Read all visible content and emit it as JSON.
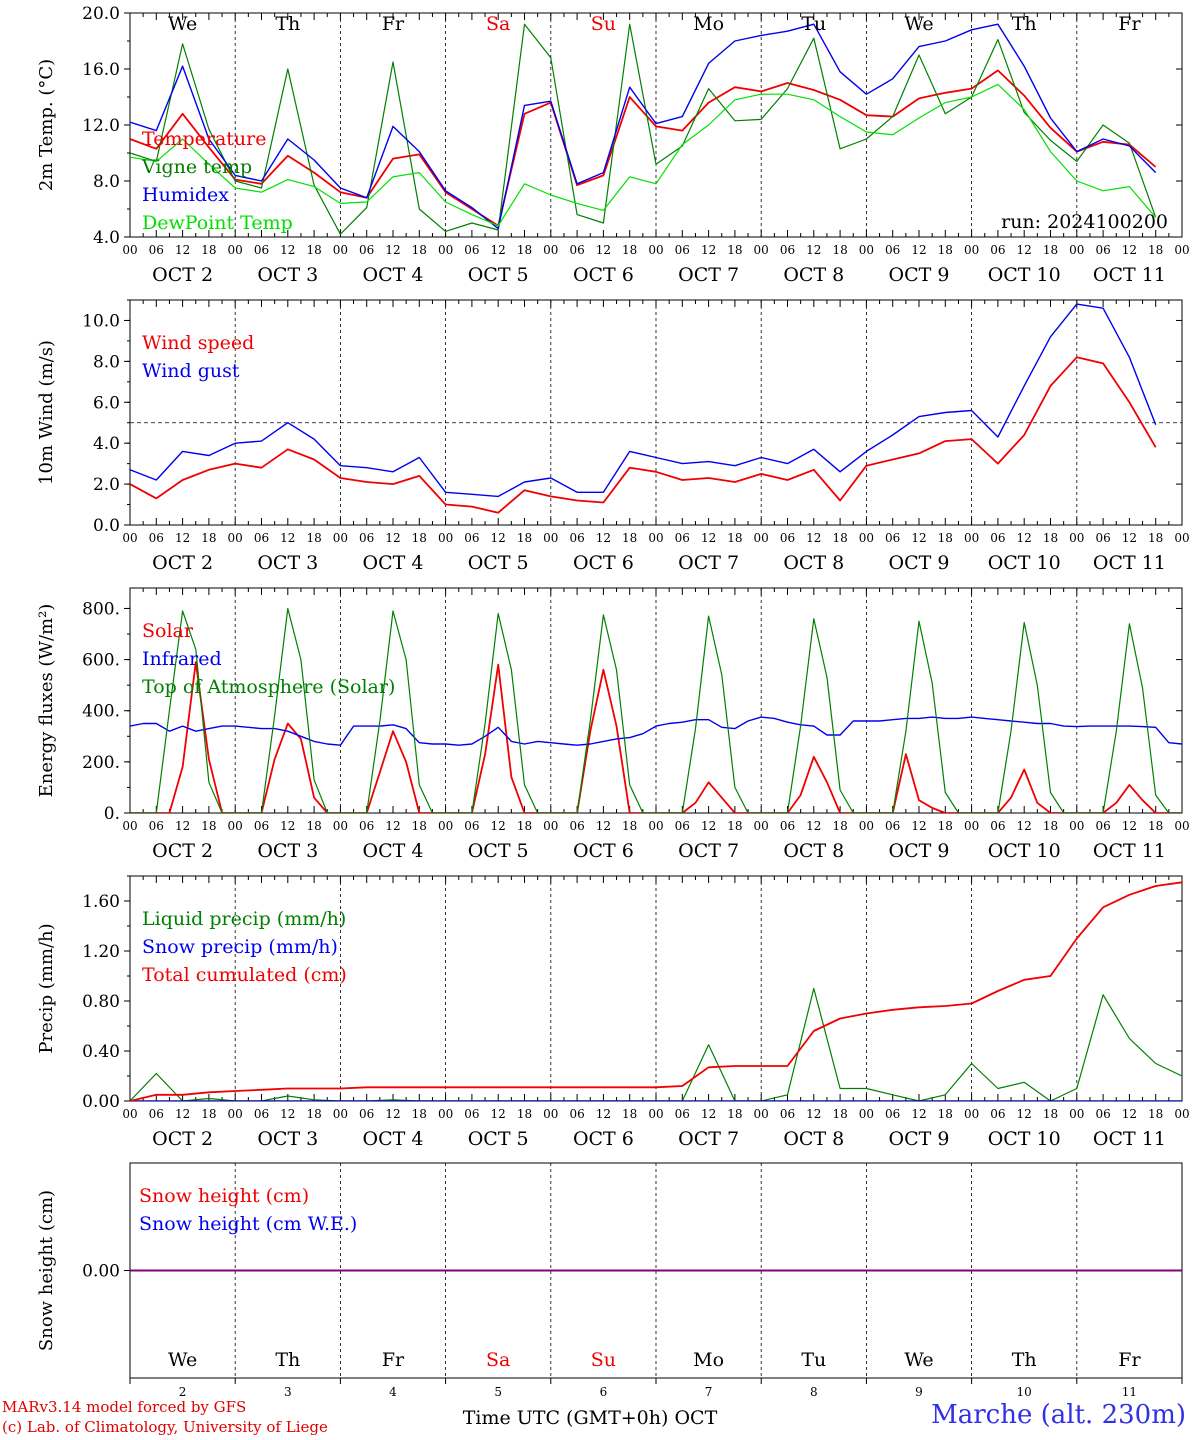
{
  "run_label": "run: 2024100200",
  "footer": {
    "credit_line1": "MARv3.14 model forced by GFS",
    "credit_line2": "(c) Lab. of Climatology, University of Liege",
    "station": "Marche (alt. 230m)",
    "time_axis_label": "Time UTC (GMT+0h) OCT"
  },
  "days": {
    "weekday_labels": [
      "We",
      "Th",
      "Fr",
      "Sa",
      "Su",
      "Mo",
      "Tu",
      "We",
      "Th",
      "Fr"
    ],
    "weekend_flags": [
      false,
      false,
      false,
      true,
      true,
      false,
      false,
      false,
      false,
      false
    ],
    "date_labels": [
      "OCT  2",
      "OCT  3",
      "OCT  4",
      "OCT  5",
      "OCT  6",
      "OCT  7",
      "OCT  8",
      "OCT  9",
      "OCT 10",
      "OCT 11"
    ],
    "day_numbers": [
      "2",
      "3",
      "4",
      "5",
      "6",
      "7",
      "8",
      "9",
      "10",
      "11"
    ],
    "hour_labels": [
      "00",
      "06",
      "12",
      "18"
    ],
    "final_hour_label": "00"
  },
  "colors": {
    "red": "#f00000",
    "blue": "#0000f0",
    "green": "#008000",
    "lightgreen": "#00e000",
    "purple": "#800080",
    "axis": "#000000"
  },
  "chart_data": [
    {
      "type": "line",
      "ylabel": "2m Temp. (°C)",
      "ylim": [
        4,
        20
      ],
      "yticks": [
        4,
        8,
        12,
        16,
        20
      ],
      "ytick_labels": [
        "4.0",
        "8.0",
        "12.0",
        "16.0",
        "20.0"
      ],
      "x_start_hour": 0,
      "x_step_hours": 6,
      "series": [
        {
          "name": "Temperature",
          "color": "red",
          "values": [
            11.0,
            10.3,
            12.8,
            10.4,
            8.1,
            7.8,
            9.8,
            8.6,
            7.2,
            6.8,
            9.6,
            9.9,
            7.2,
            6.0,
            4.8,
            12.8,
            13.6,
            7.7,
            8.4,
            14.0,
            11.9,
            11.6,
            13.6,
            14.7,
            14.4,
            15.0,
            14.5,
            13.8,
            12.7,
            12.6,
            13.9,
            14.3,
            14.6,
            15.9,
            14.1,
            11.8,
            10.1,
            10.8,
            10.6,
            9.0
          ]
        },
        {
          "name": "Vigne temp",
          "color": "green",
          "values": [
            10.0,
            9.4,
            17.8,
            11.7,
            8.0,
            7.5,
            16.0,
            7.7,
            4.2,
            6.1,
            16.5,
            6.0,
            4.4,
            5.0,
            4.5,
            19.2,
            16.8,
            5.6,
            5.0,
            19.2,
            9.2,
            10.5,
            14.6,
            12.3,
            12.4,
            14.6,
            18.2,
            10.3,
            11.0,
            12.6,
            17.0,
            12.8,
            14.0,
            18.1,
            12.9,
            10.9,
            9.4,
            12.0,
            10.7,
            5.4
          ]
        },
        {
          "name": "Humidex",
          "color": "blue",
          "values": [
            12.2,
            11.6,
            16.2,
            11.0,
            8.4,
            8.0,
            11.0,
            9.5,
            7.5,
            6.8,
            11.9,
            10.1,
            7.3,
            6.1,
            4.6,
            13.4,
            13.7,
            7.8,
            8.6,
            14.7,
            12.1,
            12.6,
            16.4,
            18.0,
            18.4,
            18.7,
            19.2,
            15.8,
            14.2,
            15.3,
            17.6,
            18.0,
            18.8,
            19.2,
            16.2,
            12.5,
            10.1,
            11.0,
            10.5,
            8.6
          ]
        },
        {
          "name": "DewPoint Temp",
          "color": "lightgreen",
          "values": [
            9.7,
            9.4,
            11.0,
            9.2,
            7.5,
            7.2,
            8.1,
            7.6,
            6.4,
            6.5,
            8.3,
            8.6,
            6.5,
            5.6,
            4.8,
            7.8,
            7.0,
            6.4,
            5.9,
            8.3,
            7.8,
            10.6,
            12.0,
            13.8,
            14.2,
            14.2,
            13.8,
            12.6,
            11.5,
            11.3,
            12.5,
            13.6,
            14.0,
            14.9,
            13.1,
            10.1,
            8.0,
            7.3,
            7.6,
            5.4
          ]
        }
      ]
    },
    {
      "type": "line",
      "ylabel": "10m Wind (m/s)",
      "ylim": [
        0,
        11
      ],
      "yticks": [
        0,
        2,
        4,
        6,
        8,
        10
      ],
      "ytick_labels": [
        "0.0",
        "2.0",
        "4.0",
        "6.0",
        "8.0",
        "10.0"
      ],
      "reference_line": 5,
      "x_start_hour": 0,
      "x_step_hours": 6,
      "series": [
        {
          "name": "Wind speed",
          "color": "red",
          "values": [
            2.0,
            1.3,
            2.2,
            2.7,
            3.0,
            2.8,
            3.7,
            3.2,
            2.3,
            2.1,
            2.0,
            2.4,
            1.0,
            0.9,
            0.6,
            1.7,
            1.4,
            1.2,
            1.1,
            2.8,
            2.6,
            2.2,
            2.3,
            2.1,
            2.5,
            2.2,
            2.7,
            1.2,
            2.9,
            3.2,
            3.5,
            4.1,
            4.2,
            3.0,
            4.4,
            6.8,
            8.2,
            7.9,
            6.0,
            3.8
          ]
        },
        {
          "name": "Wind gust",
          "color": "blue",
          "values": [
            2.7,
            2.2,
            3.6,
            3.4,
            4.0,
            4.1,
            5.0,
            4.2,
            2.9,
            2.8,
            2.6,
            3.3,
            1.6,
            1.5,
            1.4,
            2.1,
            2.3,
            1.6,
            1.6,
            3.6,
            3.3,
            3.0,
            3.1,
            2.9,
            3.3,
            3.0,
            3.7,
            2.6,
            3.6,
            4.4,
            5.3,
            5.5,
            5.6,
            4.3,
            6.8,
            9.2,
            10.8,
            10.6,
            8.2,
            4.9
          ]
        }
      ]
    },
    {
      "type": "line",
      "ylabel": "Energy fluxes (W/m²)",
      "ylim": [
        0,
        880
      ],
      "yticks": [
        0,
        200,
        400,
        600,
        800
      ],
      "ytick_labels": [
        "0.",
        "200.",
        "400.",
        "600.",
        "800."
      ],
      "x_start_hour": 0,
      "x_step_hours": 3,
      "series": [
        {
          "name": "Solar",
          "color": "red",
          "values": [
            0,
            0,
            0,
            0,
            180,
            590,
            210,
            0,
            0,
            0,
            0,
            210,
            350,
            290,
            60,
            0,
            0,
            0,
            0,
            160,
            320,
            200,
            0,
            0,
            0,
            0,
            0,
            230,
            580,
            140,
            0,
            0,
            0,
            0,
            0,
            320,
            560,
            340,
            0,
            0,
            0,
            0,
            0,
            40,
            120,
            60,
            0,
            0,
            0,
            0,
            0,
            70,
            220,
            120,
            0,
            0,
            0,
            0,
            0,
            230,
            50,
            20,
            0,
            0,
            0,
            0,
            0,
            60,
            170,
            40,
            0,
            0,
            0,
            0,
            0,
            40,
            110,
            50,
            0,
            0,
            0
          ]
        },
        {
          "name": "Infrared",
          "color": "blue",
          "values": [
            340,
            350,
            350,
            320,
            340,
            320,
            330,
            340,
            340,
            335,
            330,
            330,
            320,
            300,
            280,
            270,
            265,
            340,
            340,
            340,
            345,
            330,
            275,
            270,
            270,
            265,
            270,
            300,
            335,
            280,
            270,
            280,
            275,
            270,
            265,
            270,
            280,
            290,
            295,
            310,
            340,
            350,
            355,
            365,
            365,
            335,
            330,
            360,
            375,
            370,
            355,
            345,
            340,
            305,
            305,
            360,
            360,
            360,
            365,
            370,
            370,
            375,
            370,
            370,
            375,
            370,
            365,
            360,
            355,
            350,
            350,
            340,
            338,
            340,
            340,
            340,
            340,
            338,
            335,
            275,
            270
          ]
        },
        {
          "name": "Top of Atmosphere (Solar)",
          "color": "green",
          "values": [
            0,
            0,
            0,
            400,
            790,
            640,
            120,
            0,
            0,
            0,
            0,
            380,
            800,
            600,
            130,
            0,
            0,
            0,
            0,
            360,
            790,
            600,
            110,
            0,
            0,
            0,
            0,
            350,
            780,
            560,
            110,
            0,
            0,
            0,
            0,
            360,
            775,
            560,
            110,
            0,
            0,
            0,
            0,
            330,
            770,
            540,
            100,
            0,
            0,
            0,
            0,
            340,
            760,
            530,
            90,
            0,
            0,
            0,
            0,
            320,
            750,
            510,
            80,
            0,
            0,
            0,
            0,
            320,
            745,
            500,
            80,
            0,
            0,
            0,
            0,
            320,
            740,
            490,
            70,
            0,
            0
          ]
        }
      ]
    },
    {
      "type": "line",
      "ylabel": "Precip (mm/h)",
      "ylim": [
        0,
        1.8
      ],
      "yticks": [
        0,
        0.4,
        0.8,
        1.2,
        1.6
      ],
      "ytick_labels": [
        "0.00",
        "0.40",
        "0.80",
        "1.20",
        "1.60"
      ],
      "x_start_hour": 0,
      "x_step_hours": 6,
      "series": [
        {
          "name": "Liquid precip (mm/h)",
          "color": "green",
          "values": [
            0.0,
            0.22,
            0.0,
            0.02,
            0.0,
            0.0,
            0.04,
            0.01,
            0.0,
            0.0,
            0.01,
            0.0,
            0.0,
            0.0,
            0.0,
            0.0,
            0.0,
            0.0,
            0.0,
            0.0,
            0.0,
            0.0,
            0.45,
            0.0,
            0.0,
            0.05,
            0.9,
            0.1,
            0.1,
            0.05,
            0.0,
            0.05,
            0.3,
            0.1,
            0.15,
            0.0,
            0.1,
            0.85,
            0.5,
            0.3,
            0.2,
            0.04,
            0.0,
            0.08,
            0.04,
            0.02,
            0.0,
            0.0
          ]
        },
        {
          "name": "Snow precip (mm/h)",
          "color": "blue",
          "values": [
            0.0,
            0.0,
            0.0,
            0.0,
            0.0,
            0.0,
            0.0,
            0.0,
            0.0,
            0.0,
            0.0,
            0.0,
            0.0,
            0.0,
            0.0,
            0.0,
            0.0,
            0.0,
            0.0,
            0.0,
            0.0,
            0.0,
            0.0,
            0.0,
            0.0,
            0.0,
            0.0,
            0.0,
            0.0,
            0.0,
            0.0,
            0.0,
            0.0,
            0.0,
            0.0,
            0.0,
            0.0,
            0.0,
            0.0,
            0.0,
            0.0,
            0.0,
            0.0,
            0.0,
            0.0,
            0.0,
            0.0,
            0.0
          ]
        },
        {
          "name": "Total cumulated (cm)",
          "color": "red",
          "values": [
            0.0,
            0.05,
            0.05,
            0.07,
            0.08,
            0.09,
            0.1,
            0.1,
            0.1,
            0.11,
            0.11,
            0.11,
            0.11,
            0.11,
            0.11,
            0.11,
            0.11,
            0.11,
            0.11,
            0.11,
            0.11,
            0.12,
            0.27,
            0.28,
            0.28,
            0.28,
            0.56,
            0.66,
            0.7,
            0.73,
            0.75,
            0.76,
            0.78,
            0.88,
            0.97,
            1.0,
            1.3,
            1.55,
            1.65,
            1.72,
            1.75,
            1.78,
            1.8,
            1.8,
            1.8,
            1.8,
            1.8,
            1.8
          ]
        }
      ]
    },
    {
      "type": "line",
      "ylabel": "Snow height (cm)",
      "ylim": [
        -1,
        1
      ],
      "yticks": [
        0
      ],
      "ytick_labels": [
        "0.00"
      ],
      "series": [
        {
          "name": "Snow height (cm)",
          "color": "red",
          "values": [
            0,
            0
          ]
        },
        {
          "name": "Snow height (cm W.E.)",
          "color": "blue",
          "values": [
            0,
            0
          ]
        }
      ]
    }
  ]
}
